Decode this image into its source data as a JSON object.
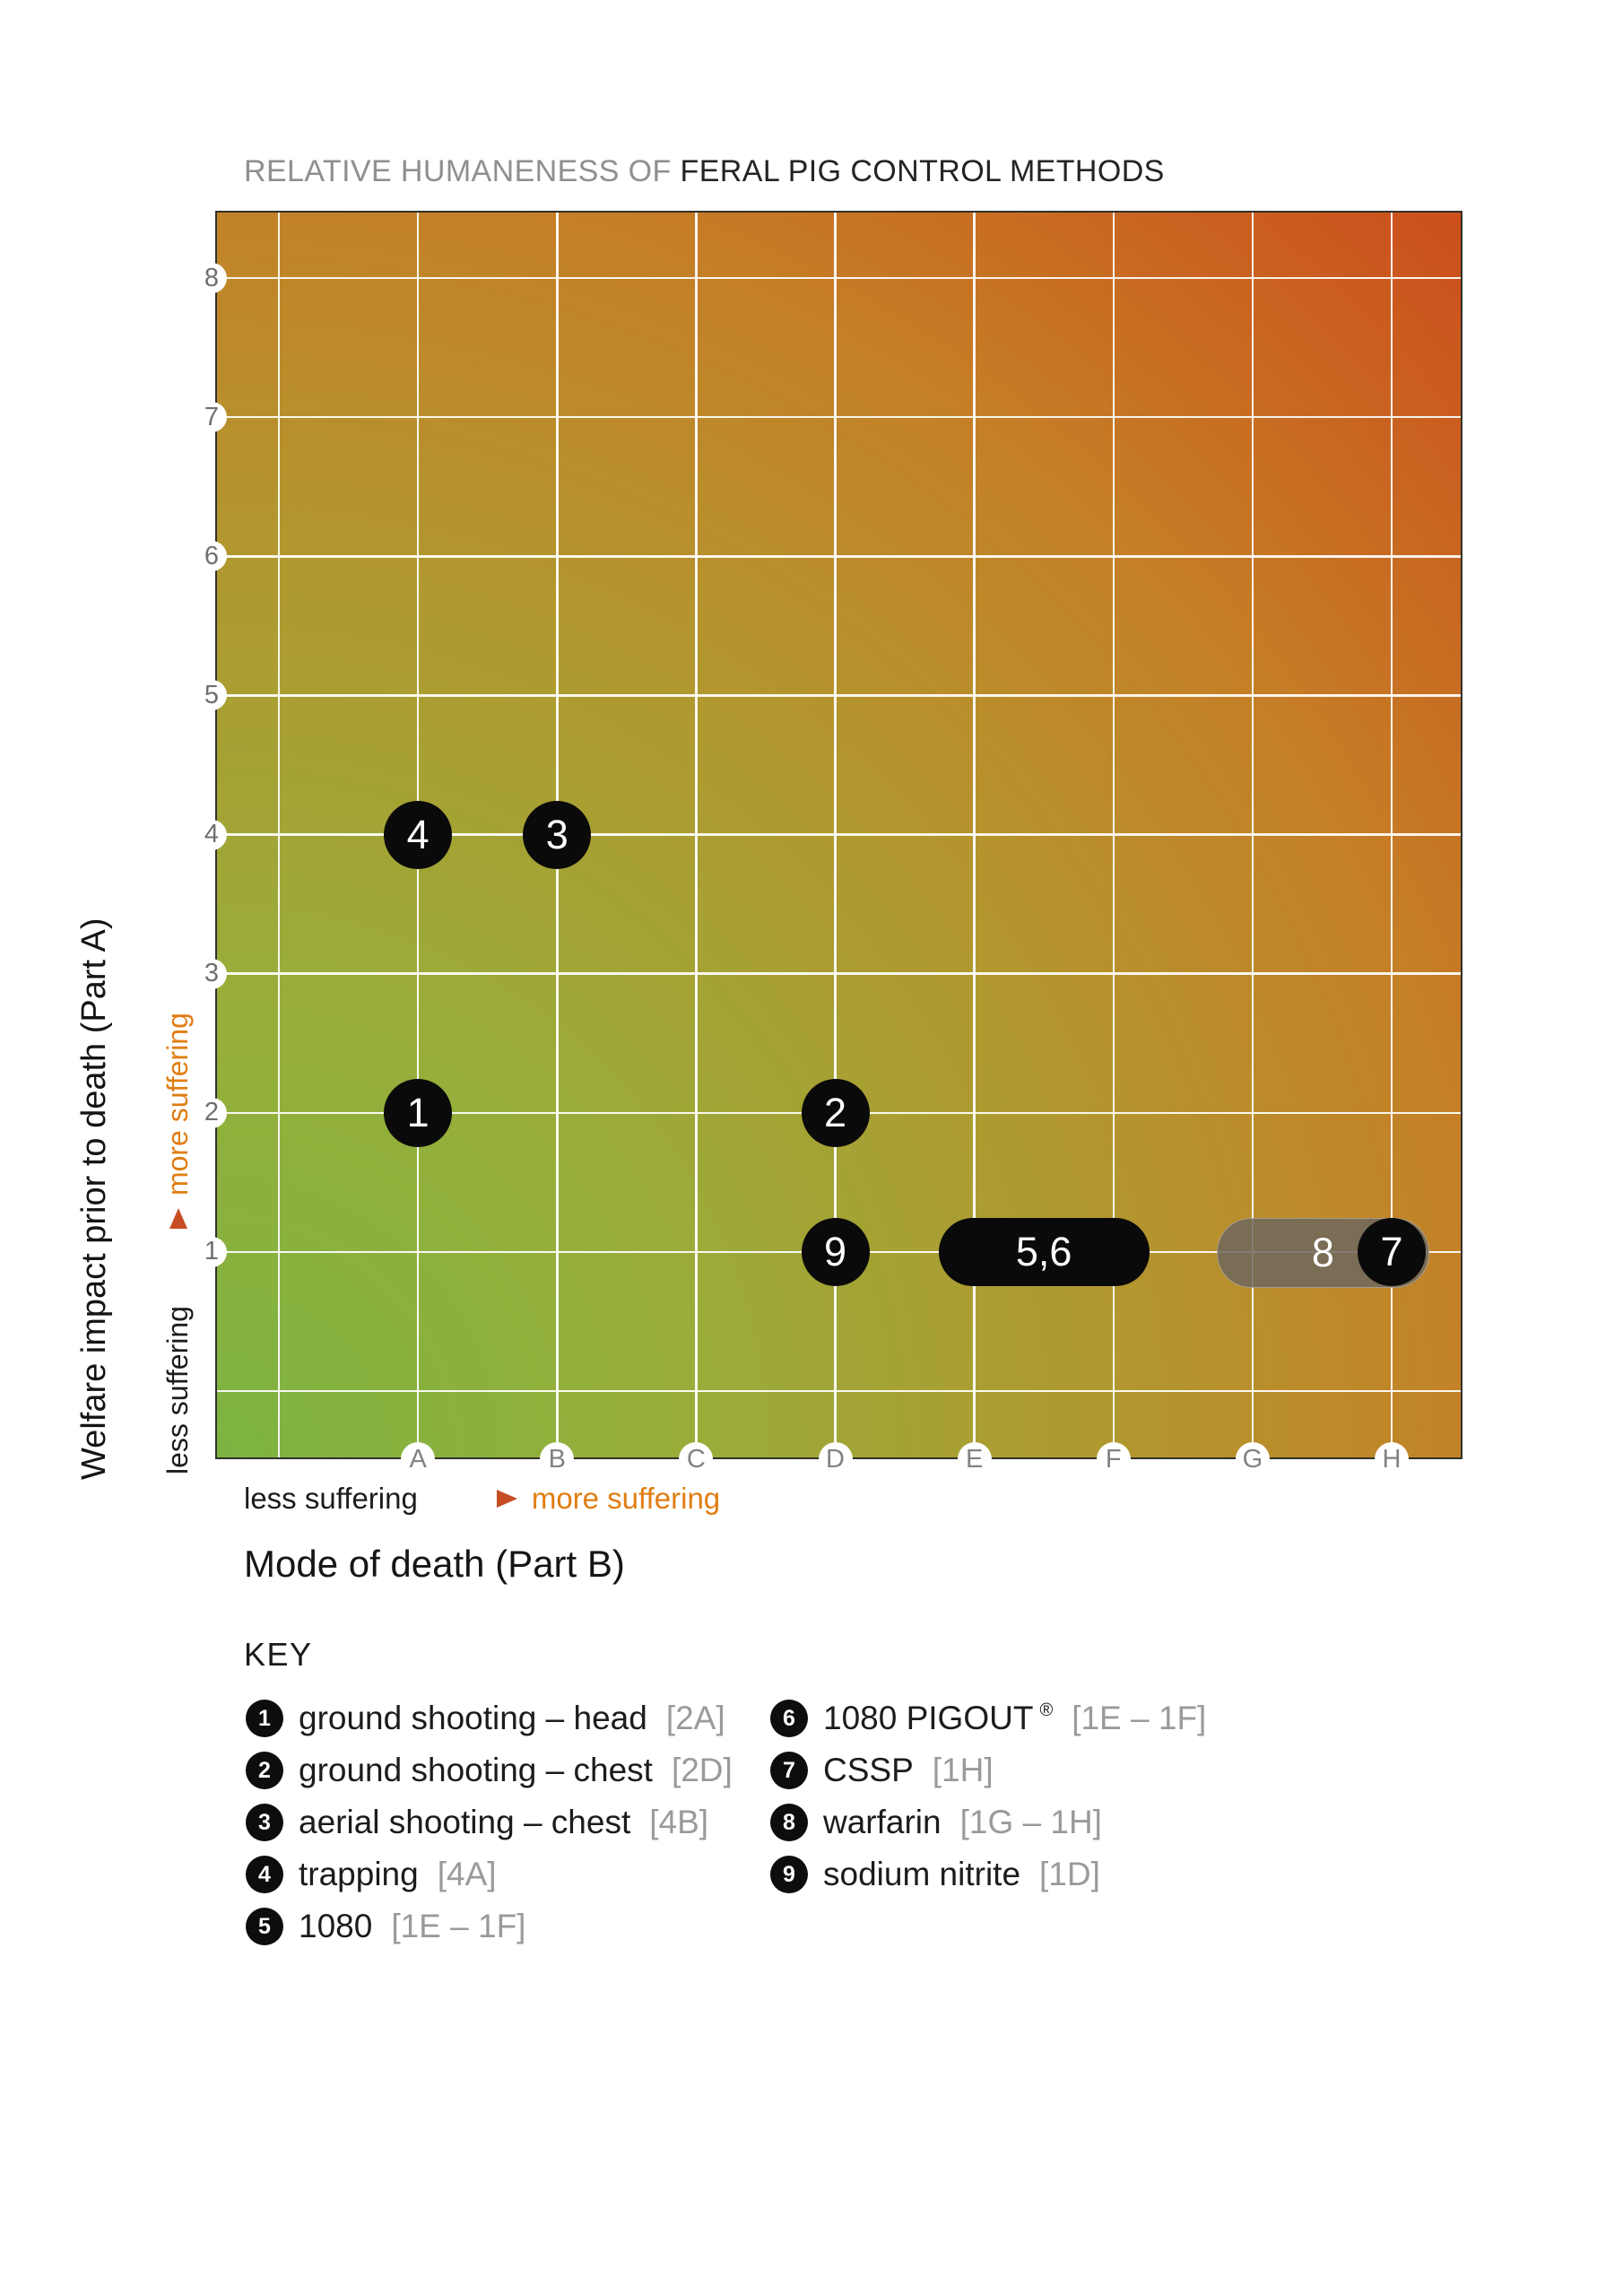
{
  "title": {
    "muted": "RELATIVE HUMANENESS OF ",
    "strong": "FERAL PIG CONTROL METHODS"
  },
  "y_axis": {
    "label": "Welfare impact prior to death (Part A)",
    "less": "less suffering",
    "more": "more suffering",
    "ticks": [
      "8",
      "7",
      "6",
      "5",
      "4",
      "3",
      "2",
      "1"
    ]
  },
  "x_axis": {
    "label": "Mode of death (Part B)",
    "less": "less suffering",
    "more": "more suffering",
    "ticks": [
      "A",
      "B",
      "C",
      "D",
      "E",
      "F",
      "G",
      "H"
    ]
  },
  "key": {
    "heading": "KEY",
    "columns": [
      [
        {
          "num": "1",
          "label": "ground shooting – head",
          "sup": "",
          "bracket": "[2A]"
        },
        {
          "num": "2",
          "label": "ground shooting – chest",
          "sup": "",
          "bracket": "[2D]"
        },
        {
          "num": "3",
          "label": "aerial shooting – chest",
          "sup": "",
          "bracket": "[4B]"
        },
        {
          "num": "4",
          "label": "trapping",
          "sup": "",
          "bracket": "[4A]"
        },
        {
          "num": "5",
          "label": "1080",
          "sup": "",
          "bracket": "[1E – 1F]"
        }
      ],
      [
        {
          "num": "6",
          "label": "1080 PIGOUT",
          "sup": "®",
          "bracket": "[1E – 1F]"
        },
        {
          "num": "7",
          "label": "CSSP",
          "sup": "",
          "bracket": "[1H]"
        },
        {
          "num": "8",
          "label": "warfarin",
          "sup": "",
          "bracket": "[1G – 1H]"
        },
        {
          "num": "9",
          "label": "sodium nitrite",
          "sup": "",
          "bracket": "[1D]"
        }
      ]
    ]
  },
  "colors": {
    "gradient": [
      "#7cb441",
      "#97ae3b",
      "#b0992f",
      "#c57f26",
      "#cc4e1c"
    ],
    "accent_orange": "#e07d12",
    "arrow_tail": "#d98a2e",
    "arrow_head": "#c64d24",
    "marker_black": "#0a0a0a",
    "gray_pill": "#6e675d",
    "title_muted": "#8f8f8f",
    "grid_white": "#ffffff"
  },
  "chart_data": {
    "type": "scatter",
    "title": "RELATIVE HUMANENESS OF FERAL PIG CONTROL METHODS",
    "xlabel": "Mode of death (Part B)",
    "ylabel": "Welfare impact prior to death (Part A)",
    "x_ticks": [
      "A",
      "B",
      "C",
      "D",
      "E",
      "F",
      "G",
      "H"
    ],
    "y_ticks": [
      1,
      2,
      3,
      4,
      5,
      6,
      7,
      8
    ],
    "x_arrow": "less suffering → more suffering",
    "y_arrow": "less suffering → more suffering",
    "grid": true,
    "background": "diagonal gradient, green at bottom-left (most humane) to red at top-right (least humane)",
    "points": [
      {
        "label": "4",
        "method": "trapping",
        "x": "A",
        "y": 4,
        "style": "black"
      },
      {
        "label": "3",
        "method": "aerial shooting – chest",
        "x": "B",
        "y": 4,
        "style": "black"
      },
      {
        "label": "1",
        "method": "ground shooting – head",
        "x": "A",
        "y": 2,
        "style": "black"
      },
      {
        "label": "2",
        "method": "ground shooting – chest",
        "x": "D",
        "y": 2,
        "style": "black"
      },
      {
        "label": "9",
        "method": "sodium nitrite",
        "x": "D",
        "y": 1,
        "style": "black"
      },
      {
        "label": "5,6",
        "method": "1080 / 1080 PIGOUT®",
        "x": "E–F",
        "y": 1,
        "style": "black"
      },
      {
        "label": "8",
        "method": "warfarin",
        "x": "G–H",
        "y": 1,
        "style": "gray"
      },
      {
        "label": "7",
        "method": "CSSP",
        "x": "H",
        "y": 1,
        "style": "black"
      }
    ]
  }
}
